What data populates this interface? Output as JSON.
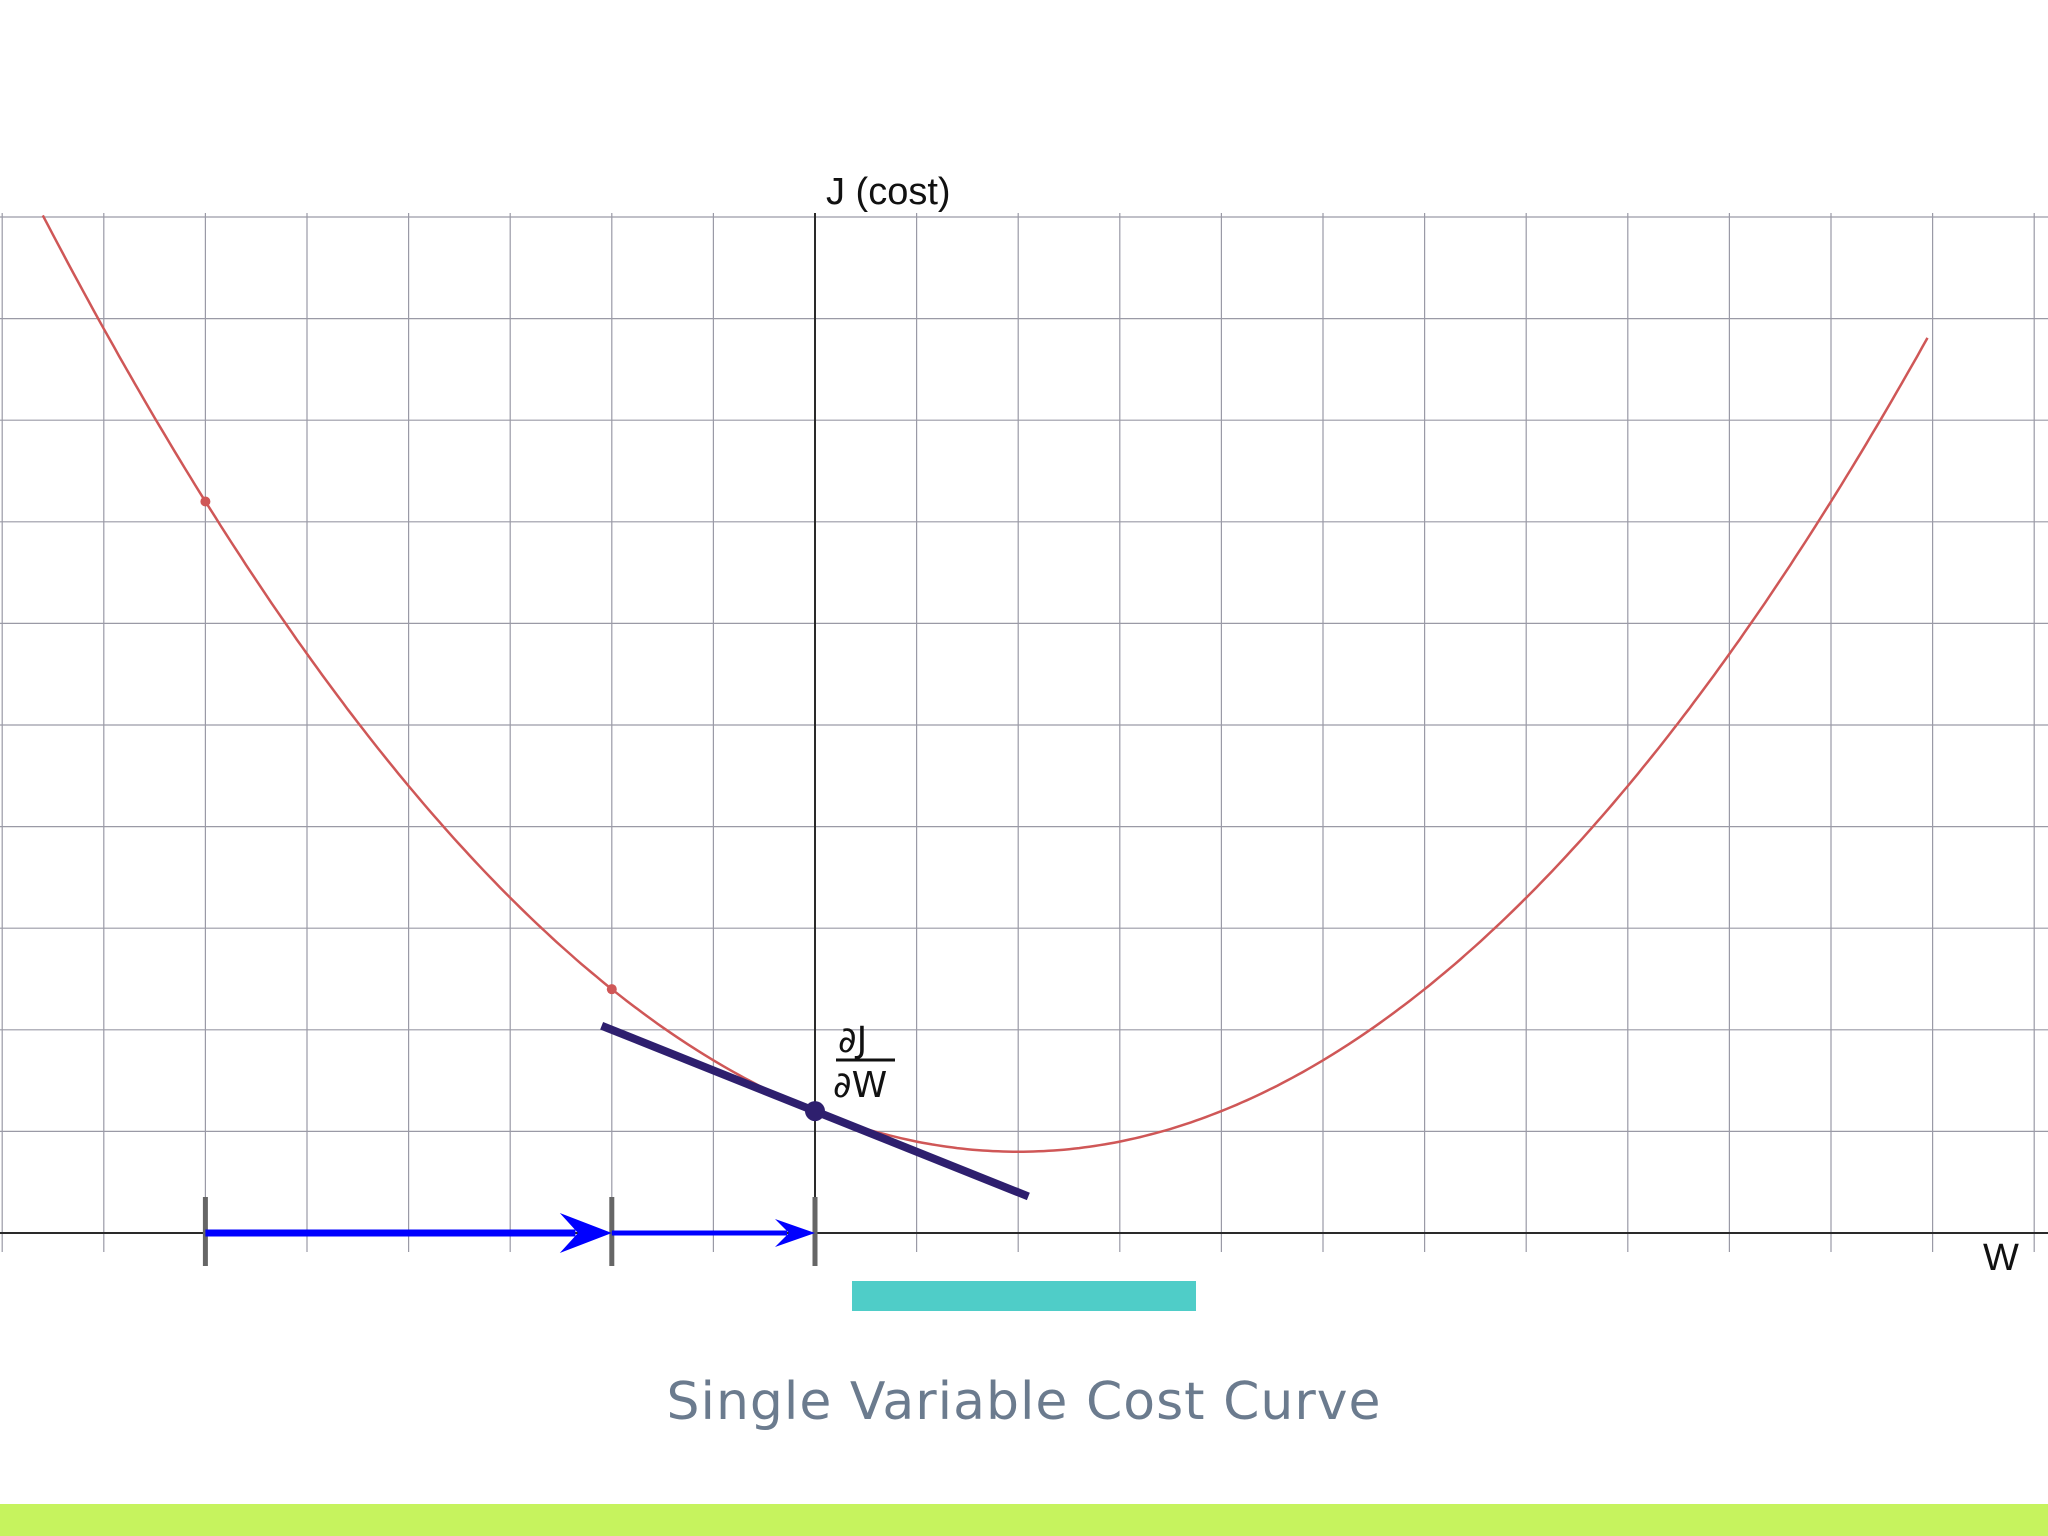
{
  "axes": {
    "y_label": "J (cost)",
    "x_label": "W"
  },
  "derivative": {
    "numerator": "∂J",
    "denominator": "∂W"
  },
  "caption": "Single Variable Cost Curve",
  "colors": {
    "curve": "#cf5757",
    "tangent": "#2e1f6e",
    "step_arrow": "#0000ff",
    "highlight_bar": "#4fcdc8",
    "footer_bar": "#c6f35e",
    "caption": "#6b7b8e"
  },
  "cost_curve": {
    "minimum_w": 2,
    "minimum_j": 0.8,
    "w_range": [
      -8,
      11
    ],
    "steps_w": [
      -6,
      -2,
      0
    ],
    "tangent_point_w": 0
  }
}
